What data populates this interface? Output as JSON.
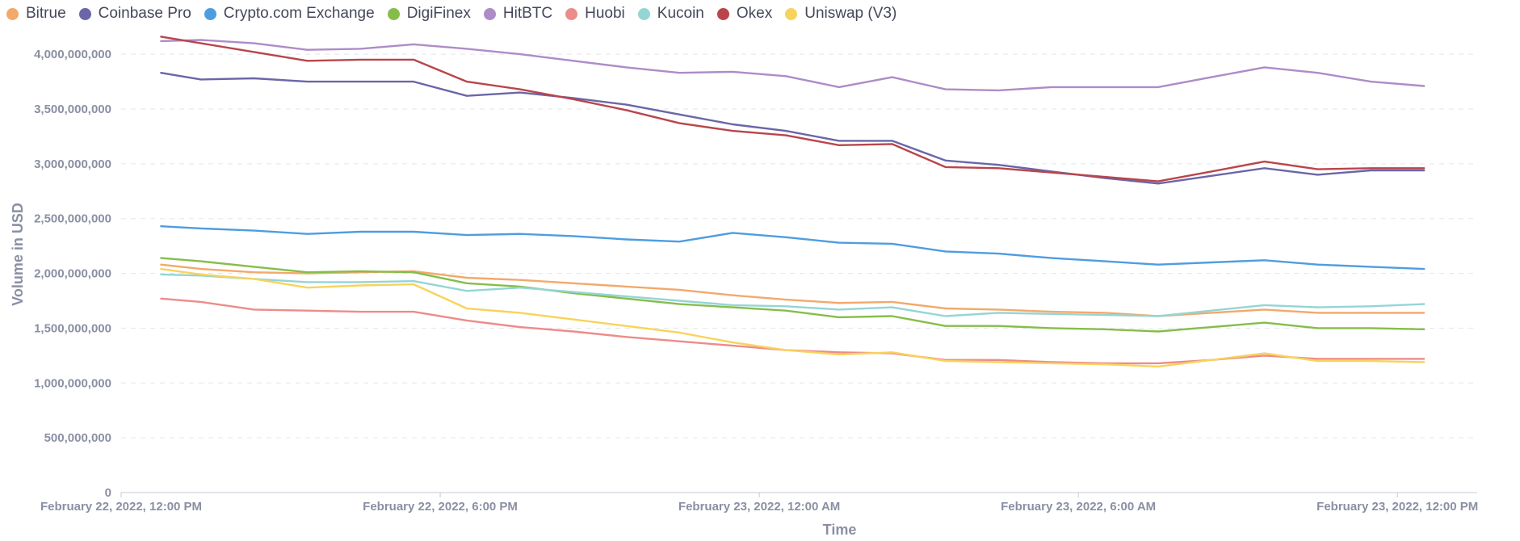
{
  "chart_data": {
    "type": "line",
    "xlabel": "Time",
    "ylabel": "Volume in USD",
    "x_ticks": [
      "February 22, 2022, 12:00 PM",
      "February 22, 2022, 6:00 PM",
      "February 23, 2022, 12:00 AM",
      "February 23, 2022, 6:00 AM",
      "February 23, 2022, 12:00 PM"
    ],
    "x_range_hours": [
      0,
      25.5
    ],
    "y_ticks": [
      "0",
      "500,000,000",
      "1,000,000,000",
      "1,500,000,000",
      "2,000,000,000",
      "2,500,000,000",
      "3,000,000,000",
      "3,500,000,000",
      "4,000,000,000"
    ],
    "ylim": [
      0,
      4200000000
    ],
    "grid": true,
    "legend": "top-left",
    "x": [
      0.75,
      1.5,
      2.5,
      3.5,
      4.5,
      5.5,
      6.5,
      7.5,
      8.5,
      9.5,
      10.5,
      11.5,
      12.5,
      13.5,
      14.5,
      15.5,
      16.5,
      17.5,
      18.5,
      19.5,
      20.5,
      21.5,
      22.5,
      23.5,
      24.5
    ],
    "series": [
      {
        "name": "Bitrue",
        "color": "#f2a96b",
        "values": [
          2080000000,
          2040000000,
          2010000000,
          2000000000,
          2010000000,
          2020000000,
          1960000000,
          1940000000,
          1910000000,
          1880000000,
          1850000000,
          1800000000,
          1760000000,
          1730000000,
          1740000000,
          1680000000,
          1670000000,
          1650000000,
          1640000000,
          1610000000,
          1640000000,
          1670000000,
          1640000000,
          1640000000,
          1640000000
        ]
      },
      {
        "name": "Coinbase Pro",
        "color": "#6a66a8",
        "values": [
          3830000000,
          3770000000,
          3780000000,
          3750000000,
          3750000000,
          3750000000,
          3620000000,
          3650000000,
          3600000000,
          3540000000,
          3450000000,
          3360000000,
          3300000000,
          3210000000,
          3210000000,
          3030000000,
          2990000000,
          2930000000,
          2870000000,
          2820000000,
          2890000000,
          2960000000,
          2900000000,
          2940000000,
          2940000000
        ]
      },
      {
        "name": "Crypto.com Exchange",
        "color": "#4f9ddf",
        "values": [
          2430000000,
          2410000000,
          2390000000,
          2360000000,
          2380000000,
          2380000000,
          2350000000,
          2360000000,
          2340000000,
          2310000000,
          2290000000,
          2370000000,
          2330000000,
          2280000000,
          2270000000,
          2200000000,
          2180000000,
          2140000000,
          2110000000,
          2080000000,
          2100000000,
          2120000000,
          2080000000,
          2060000000,
          2040000000
        ]
      },
      {
        "name": "DigiFinex",
        "color": "#86bd4a",
        "values": [
          2140000000,
          2110000000,
          2060000000,
          2010000000,
          2020000000,
          2010000000,
          1910000000,
          1880000000,
          1820000000,
          1770000000,
          1720000000,
          1690000000,
          1660000000,
          1600000000,
          1610000000,
          1520000000,
          1520000000,
          1500000000,
          1490000000,
          1470000000,
          1510000000,
          1550000000,
          1500000000,
          1500000000,
          1490000000
        ]
      },
      {
        "name": "HitBTC",
        "color": "#ad8cc8",
        "values": [
          4120000000,
          4130000000,
          4100000000,
          4040000000,
          4050000000,
          4090000000,
          4050000000,
          4000000000,
          3940000000,
          3880000000,
          3830000000,
          3840000000,
          3800000000,
          3700000000,
          3790000000,
          3680000000,
          3670000000,
          3700000000,
          3700000000,
          3700000000,
          3790000000,
          3880000000,
          3830000000,
          3750000000,
          3710000000
        ]
      },
      {
        "name": "Huobi",
        "color": "#ec8c8a",
        "values": [
          1770000000,
          1740000000,
          1670000000,
          1660000000,
          1650000000,
          1650000000,
          1570000000,
          1510000000,
          1470000000,
          1420000000,
          1380000000,
          1340000000,
          1300000000,
          1280000000,
          1270000000,
          1210000000,
          1210000000,
          1190000000,
          1180000000,
          1180000000,
          1210000000,
          1250000000,
          1220000000,
          1220000000,
          1220000000
        ]
      },
      {
        "name": "Kucoin",
        "color": "#95d5d5",
        "values": [
          1990000000,
          1980000000,
          1950000000,
          1920000000,
          1920000000,
          1930000000,
          1840000000,
          1870000000,
          1830000000,
          1790000000,
          1750000000,
          1710000000,
          1700000000,
          1670000000,
          1690000000,
          1610000000,
          1640000000,
          1630000000,
          1620000000,
          1610000000,
          1660000000,
          1710000000,
          1690000000,
          1700000000,
          1720000000
        ]
      },
      {
        "name": "Okex",
        "color": "#b9454b",
        "values": [
          4160000000,
          4100000000,
          4020000000,
          3940000000,
          3950000000,
          3950000000,
          3750000000,
          3680000000,
          3590000000,
          3490000000,
          3370000000,
          3300000000,
          3260000000,
          3170000000,
          3180000000,
          2970000000,
          2960000000,
          2920000000,
          2880000000,
          2840000000,
          2930000000,
          3020000000,
          2950000000,
          2960000000,
          2960000000
        ]
      },
      {
        "name": "Uniswap (V3)",
        "color": "#f8d35c",
        "values": [
          2040000000,
          1990000000,
          1950000000,
          1870000000,
          1890000000,
          1900000000,
          1680000000,
          1640000000,
          1580000000,
          1520000000,
          1460000000,
          1370000000,
          1300000000,
          1260000000,
          1280000000,
          1200000000,
          1190000000,
          1180000000,
          1170000000,
          1150000000,
          1210000000,
          1270000000,
          1200000000,
          1200000000,
          1190000000
        ]
      }
    ]
  }
}
